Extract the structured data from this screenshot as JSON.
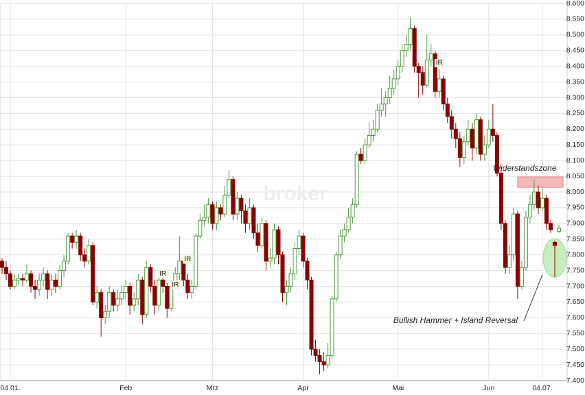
{
  "chart_data": {
    "type": "candlestick",
    "watermark": "broker",
    "up_color": "#4a9a3a",
    "down_color": "#8b0000",
    "grid": true,
    "xlim": [
      -0.5,
      137
    ],
    "xticks": [
      {
        "value": 2,
        "label": "04.01."
      },
      {
        "value": 30,
        "label": "Feb"
      },
      {
        "value": 51,
        "label": "Mrz"
      },
      {
        "value": 73,
        "label": "Apr"
      },
      {
        "value": 96,
        "label": "Mai"
      },
      {
        "value": 118,
        "label": "Jun"
      },
      {
        "value": 131,
        "label": "04.07."
      }
    ],
    "ylim": [
      7.4,
      8.6
    ],
    "yticks": [
      {
        "value": 7.4,
        "label": "7.400"
      },
      {
        "value": 7.45,
        "label": "7.450"
      },
      {
        "value": 7.5,
        "label": "7.500"
      },
      {
        "value": 7.55,
        "label": "7.550"
      },
      {
        "value": 7.6,
        "label": "7.600"
      },
      {
        "value": 7.65,
        "label": "7.650"
      },
      {
        "value": 7.7,
        "label": "7.700"
      },
      {
        "value": 7.75,
        "label": "7.750"
      },
      {
        "value": 7.8,
        "label": "7.800"
      },
      {
        "value": 7.85,
        "label": "7.850"
      },
      {
        "value": 7.9,
        "label": "7.900"
      },
      {
        "value": 7.95,
        "label": "7.950"
      },
      {
        "value": 8.0,
        "label": "8.000"
      },
      {
        "value": 8.05,
        "label": "8.050"
      },
      {
        "value": 8.1,
        "label": "8.100"
      },
      {
        "value": 8.15,
        "label": "8.150"
      },
      {
        "value": 8.2,
        "label": "8.200"
      },
      {
        "value": 8.25,
        "label": "8.250"
      },
      {
        "value": 8.3,
        "label": "8.300"
      },
      {
        "value": 8.35,
        "label": "8.350"
      },
      {
        "value": 8.4,
        "label": "8.400"
      },
      {
        "value": 8.45,
        "label": "8.450"
      },
      {
        "value": 8.5,
        "label": "8.500"
      },
      {
        "value": 8.55,
        "label": "8.550"
      },
      {
        "value": 8.6,
        "label": "8.600"
      }
    ],
    "open": [
      7.78,
      7.76,
      7.74,
      7.7,
      7.72,
      7.725,
      7.72,
      7.74,
      7.7,
      7.69,
      7.72,
      7.74,
      7.69,
      7.72,
      7.7,
      7.75,
      7.78,
      7.86,
      7.84,
      7.86,
      7.8,
      7.78,
      7.83,
      7.65,
      7.68,
      7.6,
      7.62,
      7.68,
      7.64,
      7.66,
      7.68,
      7.7,
      7.64,
      7.66,
      7.72,
      7.61,
      7.76,
      7.7,
      7.64,
      7.72,
      7.7,
      7.63,
      7.7,
      7.74,
      7.78,
      7.72,
      7.68,
      7.7,
      7.86,
      7.91,
      7.92,
      7.96,
      7.9,
      7.95,
      7.93,
      7.99,
      8.04,
      7.93,
      7.98,
      7.94,
      7.9,
      7.95,
      7.87,
      7.83,
      7.9,
      7.78,
      7.79,
      7.88,
      7.8,
      7.68,
      7.7,
      7.74,
      7.82,
      7.86,
      7.78,
      7.72,
      7.5,
      7.48,
      7.46,
      7.45,
      7.48,
      7.66,
      7.8,
      7.86,
      7.88,
      7.92,
      7.96,
      8.12,
      8.1,
      8.15,
      8.18,
      8.2,
      8.26,
      8.28,
      8.3,
      8.33,
      8.36,
      8.4,
      8.45,
      8.47,
      8.52,
      8.4,
      8.38,
      8.34,
      8.42,
      8.44,
      8.32,
      8.36,
      8.28,
      8.24,
      8.2,
      8.17,
      8.11,
      8.16,
      8.2,
      8.14,
      8.23,
      8.12,
      8.15,
      8.2,
      8.18,
      8.06,
      7.9,
      7.76,
      7.8,
      7.93,
      7.7,
      7.76,
      7.92,
      7.96,
      8.0,
      7.95,
      7.98,
      7.9,
      7.84,
      7.875
    ],
    "high": [
      7.79,
      7.78,
      7.75,
      7.74,
      7.74,
      7.74,
      7.77,
      7.75,
      7.72,
      7.74,
      7.76,
      7.75,
      7.74,
      7.74,
      7.77,
      7.8,
      7.87,
      7.87,
      7.88,
      7.87,
      7.82,
      7.85,
      7.84,
      7.7,
      7.69,
      7.64,
      7.7,
      7.69,
      7.69,
      7.7,
      7.72,
      7.71,
      7.68,
      7.74,
      7.73,
      7.78,
      7.77,
      7.72,
      7.75,
      7.74,
      7.71,
      7.72,
      7.76,
      7.86,
      7.79,
      7.74,
      7.72,
      7.87,
      7.93,
      7.96,
      7.98,
      7.97,
      7.97,
      7.96,
      8.02,
      8.07,
      8.05,
      8.0,
      7.99,
      7.96,
      7.98,
      7.96,
      7.9,
      7.92,
      7.91,
      7.82,
      7.9,
      7.89,
      7.81,
      7.72,
      7.76,
      7.84,
      7.88,
      7.87,
      7.79,
      7.73,
      7.53,
      7.5,
      7.49,
      7.52,
      7.67,
      7.81,
      7.88,
      7.9,
      7.95,
      7.98,
      8.13,
      8.14,
      8.17,
      8.22,
      8.23,
      8.28,
      8.33,
      8.32,
      8.37,
      8.39,
      8.42,
      8.47,
      8.5,
      8.555,
      8.53,
      8.41,
      8.4,
      8.5,
      8.47,
      8.45,
      8.39,
      8.37,
      8.3,
      8.26,
      8.22,
      8.19,
      8.18,
      8.23,
      8.22,
      8.25,
      8.24,
      8.18,
      8.23,
      8.28,
      8.19,
      8.08,
      7.91,
      7.83,
      7.95,
      7.94,
      7.78,
      7.94,
      7.99,
      8.04,
      8.02,
      8.01,
      7.99,
      7.91,
      7.845,
      7.895
    ],
    "low": [
      7.74,
      7.72,
      7.69,
      7.69,
      7.705,
      7.7,
      7.71,
      7.68,
      7.66,
      7.67,
      7.7,
      7.66,
      7.67,
      7.68,
      7.69,
      7.73,
      7.77,
      7.82,
      7.82,
      7.78,
      7.76,
      7.77,
      7.64,
      7.63,
      7.54,
      7.58,
      7.6,
      7.62,
      7.62,
      7.64,
      7.66,
      7.61,
      7.62,
      7.64,
      7.58,
      7.6,
      7.68,
      7.61,
      7.62,
      7.68,
      7.6,
      7.62,
      7.69,
      7.72,
      7.7,
      7.66,
      7.66,
      7.69,
      7.85,
      7.89,
      7.9,
      7.88,
      7.88,
      7.91,
      7.92,
      7.98,
      7.91,
      7.91,
      7.9,
      7.87,
      7.88,
      7.85,
      7.81,
      7.82,
      7.75,
      7.76,
      7.77,
      7.77,
      7.65,
      7.64,
      7.68,
      7.72,
      7.8,
      7.76,
      7.69,
      7.48,
      7.46,
      7.42,
      7.43,
      7.44,
      7.47,
      7.65,
      7.79,
      7.84,
      7.87,
      7.9,
      7.95,
      8.09,
      8.09,
      8.14,
      8.16,
      8.19,
      8.24,
      8.24,
      8.28,
      8.31,
      8.34,
      8.38,
      8.43,
      8.45,
      8.38,
      8.3,
      8.31,
      8.33,
      8.4,
      8.3,
      8.3,
      8.26,
      8.22,
      8.17,
      8.14,
      8.08,
      8.09,
      8.15,
      8.1,
      8.12,
      8.1,
      8.1,
      8.14,
      8.16,
      8.05,
      7.88,
      7.74,
      7.74,
      7.78,
      7.66,
      7.69,
      7.75,
      7.9,
      7.94,
      7.93,
      7.94,
      7.88,
      7.87,
      7.73,
      7.87
    ],
    "close": [
      7.76,
      7.74,
      7.7,
      7.72,
      7.725,
      7.72,
      7.74,
      7.7,
      7.69,
      7.72,
      7.74,
      7.69,
      7.72,
      7.7,
      7.75,
      7.78,
      7.86,
      7.84,
      7.86,
      7.8,
      7.78,
      7.83,
      7.65,
      7.68,
      7.6,
      7.62,
      7.68,
      7.64,
      7.66,
      7.68,
      7.7,
      7.64,
      7.66,
      7.72,
      7.61,
      7.76,
      7.7,
      7.64,
      7.72,
      7.7,
      7.63,
      7.7,
      7.74,
      7.78,
      7.72,
      7.68,
      7.7,
      7.86,
      7.91,
      7.92,
      7.96,
      7.9,
      7.95,
      7.93,
      7.99,
      8.04,
      7.93,
      7.98,
      7.94,
      7.9,
      7.95,
      7.87,
      7.83,
      7.9,
      7.78,
      7.79,
      7.88,
      7.8,
      7.68,
      7.7,
      7.74,
      7.82,
      7.86,
      7.78,
      7.72,
      7.5,
      7.48,
      7.46,
      7.45,
      7.48,
      7.66,
      7.8,
      7.86,
      7.88,
      7.92,
      7.96,
      8.12,
      8.1,
      8.15,
      8.18,
      8.2,
      8.26,
      8.28,
      8.3,
      8.33,
      8.36,
      8.4,
      8.45,
      8.47,
      8.52,
      8.4,
      8.38,
      8.34,
      8.42,
      8.44,
      8.32,
      8.36,
      8.28,
      8.24,
      8.2,
      8.17,
      8.11,
      8.16,
      8.2,
      8.14,
      8.23,
      8.12,
      8.15,
      8.2,
      8.18,
      8.06,
      7.9,
      7.76,
      7.8,
      7.93,
      7.7,
      7.76,
      7.92,
      7.96,
      8.0,
      7.95,
      7.98,
      7.9,
      7.88,
      7.83,
      7.885
    ],
    "markers": [
      {
        "text": "IR",
        "index": 39,
        "value": 7.74
      },
      {
        "text": "IR",
        "index": 42,
        "value": 7.705
      },
      {
        "text": "IR",
        "index": 45,
        "value": 7.785
      },
      {
        "text": "IR",
        "index": 106,
        "value": 8.41
      }
    ],
    "resistance_zone": {
      "label": "Widerstandszone",
      "from": 8.015,
      "to": 8.048,
      "start": 125
    },
    "highlight": {
      "label": "Bullish Hammer + Island Reversal",
      "index": 134,
      "value": 7.79
    }
  }
}
